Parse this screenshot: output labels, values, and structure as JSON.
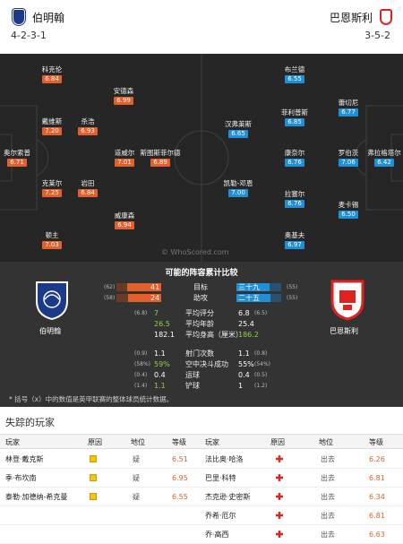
{
  "header": {
    "home_name": "伯明翰",
    "home_formation": "4-2-3-1",
    "away_name": "巴恩斯利",
    "away_formation": "3-5-2"
  },
  "colors": {
    "home_rating": "#e55f2a",
    "away_rating": "#1f8fd6",
    "pitch": "#262626",
    "panel": "#333333"
  },
  "home_players": [
    {
      "name": "科克伦",
      "rating": "6.84"
    },
    {
      "name": "安德森",
      "rating": "6.99"
    },
    {
      "name": "戴维斯",
      "rating": "7.20"
    },
    {
      "name": "杀浩",
      "rating": "6.93"
    },
    {
      "name": "奥尔索普",
      "rating": "6.71"
    },
    {
      "name": "道威尔",
      "rating": "7.01"
    },
    {
      "name": "斯图斯菲尔德",
      "rating": "6.89"
    },
    {
      "name": "克莱尔",
      "rating": "7.25"
    },
    {
      "name": "岩田",
      "rating": "6.84"
    },
    {
      "name": "威康森",
      "rating": "6.94"
    },
    {
      "name": "顿主",
      "rating": "7.03"
    }
  ],
  "away_players": [
    {
      "name": "布兰德",
      "rating": "6.55"
    },
    {
      "name": "蕾切尼",
      "rating": "6.77"
    },
    {
      "name": "菲利普斯",
      "rating": "6.85"
    },
    {
      "name": "汉弗莱斯",
      "rating": "6.65"
    },
    {
      "name": "康奈尔",
      "rating": "6.76"
    },
    {
      "name": "罗伯茨",
      "rating": "7.06"
    },
    {
      "name": "弗拉格塔尔",
      "rating": "6.42"
    },
    {
      "name": "凯勒-邓恩",
      "rating": "7.00"
    },
    {
      "name": "拉塞尔",
      "rating": "6.76"
    },
    {
      "name": "麦卡锡",
      "rating": "6.50"
    },
    {
      "name": "奥基夫",
      "rating": "6.97"
    }
  ],
  "watermark": "© WhoScored.com",
  "comparison": {
    "title": "可能的阵容累计比较",
    "home_label": "伯明翰",
    "away_label": "巴恩斯利",
    "bars": [
      {
        "label": "目标",
        "home": "41",
        "home_rank": "(62)",
        "away": "三十九",
        "away_rank": "(55)",
        "home_frac": 0.51,
        "away_frac": 0.49
      },
      {
        "label": "助攻",
        "home": "24",
        "home_rank": "(58)",
        "away": "二十五",
        "away_rank": "(55)",
        "home_frac": 0.49,
        "away_frac": 0.51
      }
    ],
    "stats": [
      {
        "label": "平均评分",
        "home": "7",
        "home_rank": "(6.8)",
        "away": "6.8",
        "away_rank": "(6.5)",
        "home_color": "#8bd34a",
        "away_color": "#ffffff"
      },
      {
        "label": "平均年龄",
        "home": "26.5",
        "home_rank": "",
        "away": "25.4",
        "away_rank": "",
        "home_color": "#8bd34a",
        "away_color": "#ffffff"
      },
      {
        "label": "平均身高（厘米）",
        "home": "182.1",
        "home_rank": "",
        "away": "186.2",
        "away_rank": "",
        "home_color": "#ffffff",
        "away_color": "#8bd34a"
      },
      {
        "label": "射门次数",
        "home": "1.1",
        "home_rank": "(0.9)",
        "away": "1.1",
        "away_rank": "(0.8)",
        "home_color": "#ffffff",
        "away_color": "#ffffff"
      },
      {
        "label": "空中决斗成功",
        "home": "59%",
        "home_rank": "(58%)",
        "away": "55%",
        "away_rank": "(54%)",
        "home_color": "#8bd34a",
        "away_color": "#ffffff"
      },
      {
        "label": "运球",
        "home": "0.4",
        "home_rank": "(0.4)",
        "away": "0.4",
        "away_rank": "(0.5)",
        "home_color": "#ffffff",
        "away_color": "#ffffff"
      },
      {
        "label": "铲球",
        "home": "1.1",
        "home_rank": "(1.4)",
        "away": "1",
        "away_rank": "(1.2)",
        "home_color": "#8bd34a",
        "away_color": "#ffffff"
      }
    ],
    "footnote": "* 括号（x）中的数值是英甲联赛的整体球员统计数据。"
  },
  "missing": {
    "title": "失踪的玩家",
    "headers": {
      "player": "玩家",
      "reason": "原因",
      "status": "地位",
      "rating": "等级"
    },
    "home": [
      {
        "player": "林登·戴克斯",
        "status": "疑",
        "rating": "6.51",
        "reason": "doubtful"
      },
      {
        "player": "季·布坎南",
        "status": "疑",
        "rating": "6.95",
        "reason": "doubtful"
      },
      {
        "player": "泰勒·加德纳-希克曼",
        "status": "疑",
        "rating": "6.55",
        "reason": "doubtful"
      }
    ],
    "away": [
      {
        "player": "法比奥·哈洛",
        "status": "出去",
        "rating": "6.26",
        "reason": "injury"
      },
      {
        "player": "巴里·科特",
        "status": "出去",
        "rating": "6.81",
        "reason": "injury"
      },
      {
        "player": "杰克逊·史密斯",
        "status": "出去",
        "rating": "6.34",
        "reason": "injury"
      },
      {
        "player": "乔希·厄尔",
        "status": "出去",
        "rating": "6.81",
        "reason": "injury"
      },
      {
        "player": "乔·高西",
        "status": "出去",
        "rating": "6.63",
        "reason": "injury"
      }
    ]
  }
}
